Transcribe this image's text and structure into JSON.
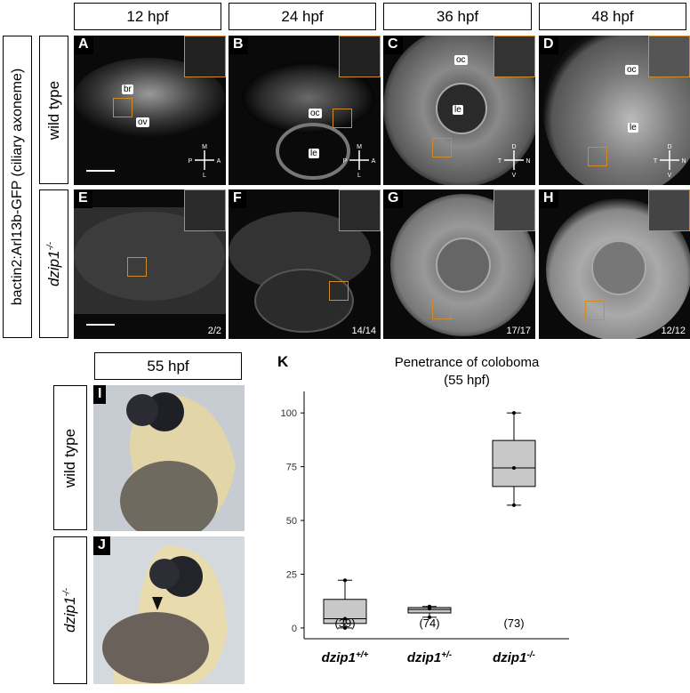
{
  "figure": {
    "row_label": "bactin2:Arl13b-GFP (ciliary axoneme)",
    "genotype_wt": "wild type",
    "genotype_mut": "dzip1-/-",
    "timepoints": [
      "12 hpf",
      "24 hpf",
      "36 hpf",
      "48 hpf"
    ],
    "panels_top": [
      {
        "letter": "A",
        "labels": [
          "br",
          "ov"
        ],
        "compass": [
          "M",
          "P",
          "A",
          "L"
        ]
      },
      {
        "letter": "B",
        "labels": [
          "oc",
          "le"
        ],
        "compass": [
          "M",
          "P",
          "A",
          "L"
        ]
      },
      {
        "letter": "C",
        "labels": [
          "oc",
          "le"
        ],
        "compass": [
          "D",
          "T",
          "N",
          "V"
        ]
      },
      {
        "letter": "D",
        "labels": [
          "oc",
          "le"
        ],
        "compass": [
          "D",
          "T",
          "N",
          "V"
        ]
      }
    ],
    "panels_bottom": [
      {
        "letter": "E",
        "count": "2/2"
      },
      {
        "letter": "F",
        "count": "14/14"
      },
      {
        "letter": "G",
        "count": "17/17"
      },
      {
        "letter": "H",
        "count": "12/12"
      }
    ],
    "lower_timepoint": "55 hpf",
    "panel_I": "I",
    "panel_J": "J",
    "panel_K": "K",
    "colors": {
      "inset_border": "#d18a2a",
      "box_fill": "#c8c8c8"
    }
  },
  "chart_data": {
    "type": "box",
    "title": "Penetrance of coloboma\n(55 hpf)",
    "title_lines": [
      "Penetrance of coloboma",
      "(55 hpf)"
    ],
    "categories": [
      "dzip1+/+",
      "dzip1+/-",
      "dzip1-/-"
    ],
    "n_labels": [
      "(39)",
      "(74)",
      "(73)"
    ],
    "ylim": [
      -5,
      110
    ],
    "yticks": [
      0,
      25,
      50,
      75,
      100
    ],
    "boxes": [
      {
        "min": 0,
        "q1": 2.1,
        "median": 4.3,
        "q3": 13.3,
        "max": 22.2
      },
      {
        "min": 5,
        "q1": 7.0,
        "median": 8.6,
        "q3": 9.5,
        "max": 10.0
      },
      {
        "min": 57.1,
        "q1": 65.8,
        "median": 74.4,
        "q3": 87.2,
        "max": 100
      }
    ],
    "points": [
      [
        0,
        4.3,
        22.2
      ],
      [
        5,
        9.0,
        10.0
      ],
      [
        57.1,
        74.4,
        100
      ]
    ]
  }
}
